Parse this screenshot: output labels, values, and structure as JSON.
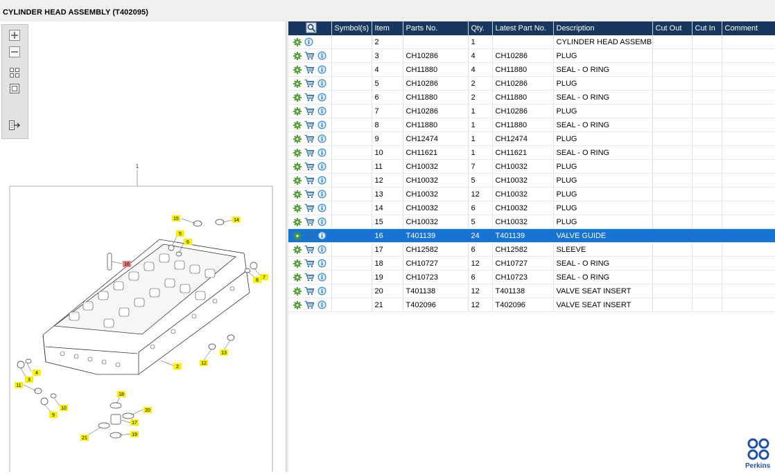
{
  "window": {
    "title": "CYLINDER HEAD ASSEMBLY (T402095)"
  },
  "toolbar": {
    "buttons": [
      "zoom-in",
      "zoom-out",
      "fit-all",
      "actual-size",
      "export"
    ]
  },
  "diagram": {
    "callouts": [
      "1",
      "2",
      "3",
      "4",
      "5",
      "6",
      "7",
      "8",
      "9",
      "10",
      "11",
      "12",
      "13",
      "14",
      "15",
      "16",
      "17",
      "18",
      "19",
      "20",
      "21"
    ],
    "highlighted_callout": "16"
  },
  "table": {
    "columns": [
      "Symbol(s)",
      "Item",
      "Parts No.",
      "Qty.",
      "Latest Part No.",
      "Description",
      "Cut Out",
      "Cut In",
      "Comment"
    ],
    "rows": [
      {
        "cart": false,
        "item": "2",
        "part": "",
        "qty": "1",
        "latest": "",
        "desc": "CYLINDER HEAD ASSEMBLY",
        "selected": false
      },
      {
        "cart": true,
        "item": "3",
        "part": "CH10286",
        "qty": "4",
        "latest": "CH10286",
        "desc": "PLUG",
        "selected": false
      },
      {
        "cart": true,
        "item": "4",
        "part": "CH11880",
        "qty": "4",
        "latest": "CH11880",
        "desc": "SEAL - O RING",
        "selected": false
      },
      {
        "cart": true,
        "item": "5",
        "part": "CH10286",
        "qty": "2",
        "latest": "CH10286",
        "desc": "PLUG",
        "selected": false
      },
      {
        "cart": true,
        "item": "6",
        "part": "CH11880",
        "qty": "2",
        "latest": "CH11880",
        "desc": "SEAL - O RING",
        "selected": false
      },
      {
        "cart": true,
        "item": "7",
        "part": "CH10286",
        "qty": "1",
        "latest": "CH10286",
        "desc": "PLUG",
        "selected": false
      },
      {
        "cart": true,
        "item": "8",
        "part": "CH11880",
        "qty": "1",
        "latest": "CH11880",
        "desc": "SEAL - O RING",
        "selected": false
      },
      {
        "cart": true,
        "item": "9",
        "part": "CH12474",
        "qty": "1",
        "latest": "CH12474",
        "desc": "PLUG",
        "selected": false
      },
      {
        "cart": true,
        "item": "10",
        "part": "CH11621",
        "qty": "1",
        "latest": "CH11621",
        "desc": "SEAL - O RING",
        "selected": false
      },
      {
        "cart": true,
        "item": "11",
        "part": "CH10032",
        "qty": "7",
        "latest": "CH10032",
        "desc": "PLUG",
        "selected": false
      },
      {
        "cart": true,
        "item": "12",
        "part": "CH10032",
        "qty": "5",
        "latest": "CH10032",
        "desc": "PLUG",
        "selected": false
      },
      {
        "cart": true,
        "item": "13",
        "part": "CH10032",
        "qty": "12",
        "latest": "CH10032",
        "desc": "PLUG",
        "selected": false
      },
      {
        "cart": true,
        "item": "14",
        "part": "CH10032",
        "qty": "6",
        "latest": "CH10032",
        "desc": "PLUG",
        "selected": false
      },
      {
        "cart": true,
        "item": "15",
        "part": "CH10032",
        "qty": "5",
        "latest": "CH10032",
        "desc": "PLUG",
        "selected": false
      },
      {
        "cart": true,
        "item": "16",
        "part": "T401139",
        "qty": "24",
        "latest": "T401139",
        "desc": "VALVE GUIDE",
        "selected": true
      },
      {
        "cart": true,
        "item": "17",
        "part": "CH12582",
        "qty": "6",
        "latest": "CH12582",
        "desc": "SLEEVE",
        "selected": false
      },
      {
        "cart": true,
        "item": "18",
        "part": "CH10727",
        "qty": "12",
        "latest": "CH10727",
        "desc": "SEAL - O RING",
        "selected": false
      },
      {
        "cart": true,
        "item": "19",
        "part": "CH10723",
        "qty": "6",
        "latest": "CH10723",
        "desc": "SEAL - O RING",
        "selected": false
      },
      {
        "cart": true,
        "item": "20",
        "part": "T401138",
        "qty": "12",
        "latest": "T401138",
        "desc": "VALVE SEAT INSERT",
        "selected": false
      },
      {
        "cart": true,
        "item": "21",
        "part": "T402096",
        "qty": "12",
        "latest": "T402096",
        "desc": "VALVE SEAT INSERT",
        "selected": false
      }
    ]
  },
  "brand": {
    "name": "Perkins",
    "color": "#1f4fa8"
  },
  "colors": {
    "header_bg": "#17375e",
    "selection_bg": "#1874d2",
    "gear": "#4c9a2a",
    "cart": "#2c6fb5",
    "info": "#3a8fd6",
    "callout_yellow": "#f7f300",
    "callout_red": "#f08080"
  }
}
